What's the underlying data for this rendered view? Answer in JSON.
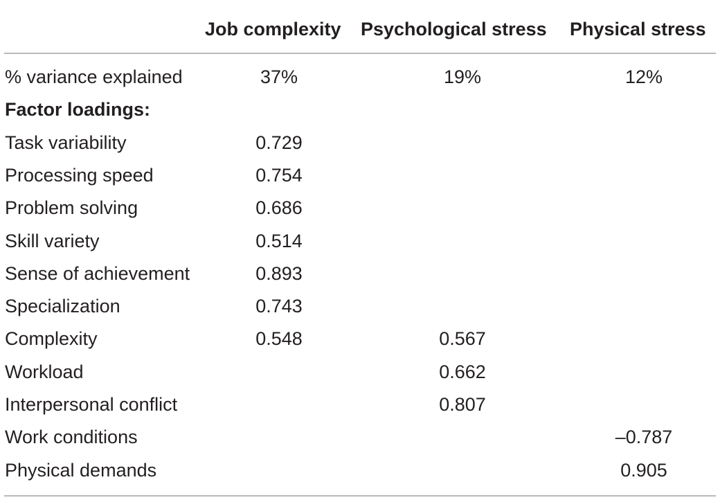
{
  "table": {
    "headers": [
      "",
      "Job complexity",
      "Psychological stress",
      "Physical stress"
    ],
    "rows": [
      {
        "label": "% variance explained",
        "bold": false,
        "values": [
          "37%",
          "19%",
          "12%"
        ]
      },
      {
        "label": "Factor loadings:",
        "bold": true,
        "values": [
          "",
          "",
          ""
        ]
      },
      {
        "label": "Task variability",
        "bold": false,
        "values": [
          "0.729",
          "",
          ""
        ]
      },
      {
        "label": "Processing speed",
        "bold": false,
        "values": [
          "0.754",
          "",
          ""
        ]
      },
      {
        "label": "Problem solving",
        "bold": false,
        "values": [
          "0.686",
          "",
          ""
        ]
      },
      {
        "label": "Skill variety",
        "bold": false,
        "values": [
          "0.514",
          "",
          ""
        ]
      },
      {
        "label": "Sense of achievement",
        "bold": false,
        "values": [
          "0.893",
          "",
          ""
        ]
      },
      {
        "label": "Specialization",
        "bold": false,
        "values": [
          "0.743",
          "",
          ""
        ]
      },
      {
        "label": "Complexity",
        "bold": false,
        "values": [
          "0.548",
          "0.567",
          ""
        ]
      },
      {
        "label": "Workload",
        "bold": false,
        "values": [
          "",
          "0.662",
          ""
        ]
      },
      {
        "label": "Interpersonal conflict",
        "bold": false,
        "values": [
          "",
          "0.807",
          ""
        ]
      },
      {
        "label": "Work conditions",
        "bold": false,
        "values": [
          "",
          "",
          "–0.787"
        ]
      },
      {
        "label": "Physical demands",
        "bold": false,
        "values": [
          "",
          "",
          "0.905"
        ]
      }
    ]
  }
}
